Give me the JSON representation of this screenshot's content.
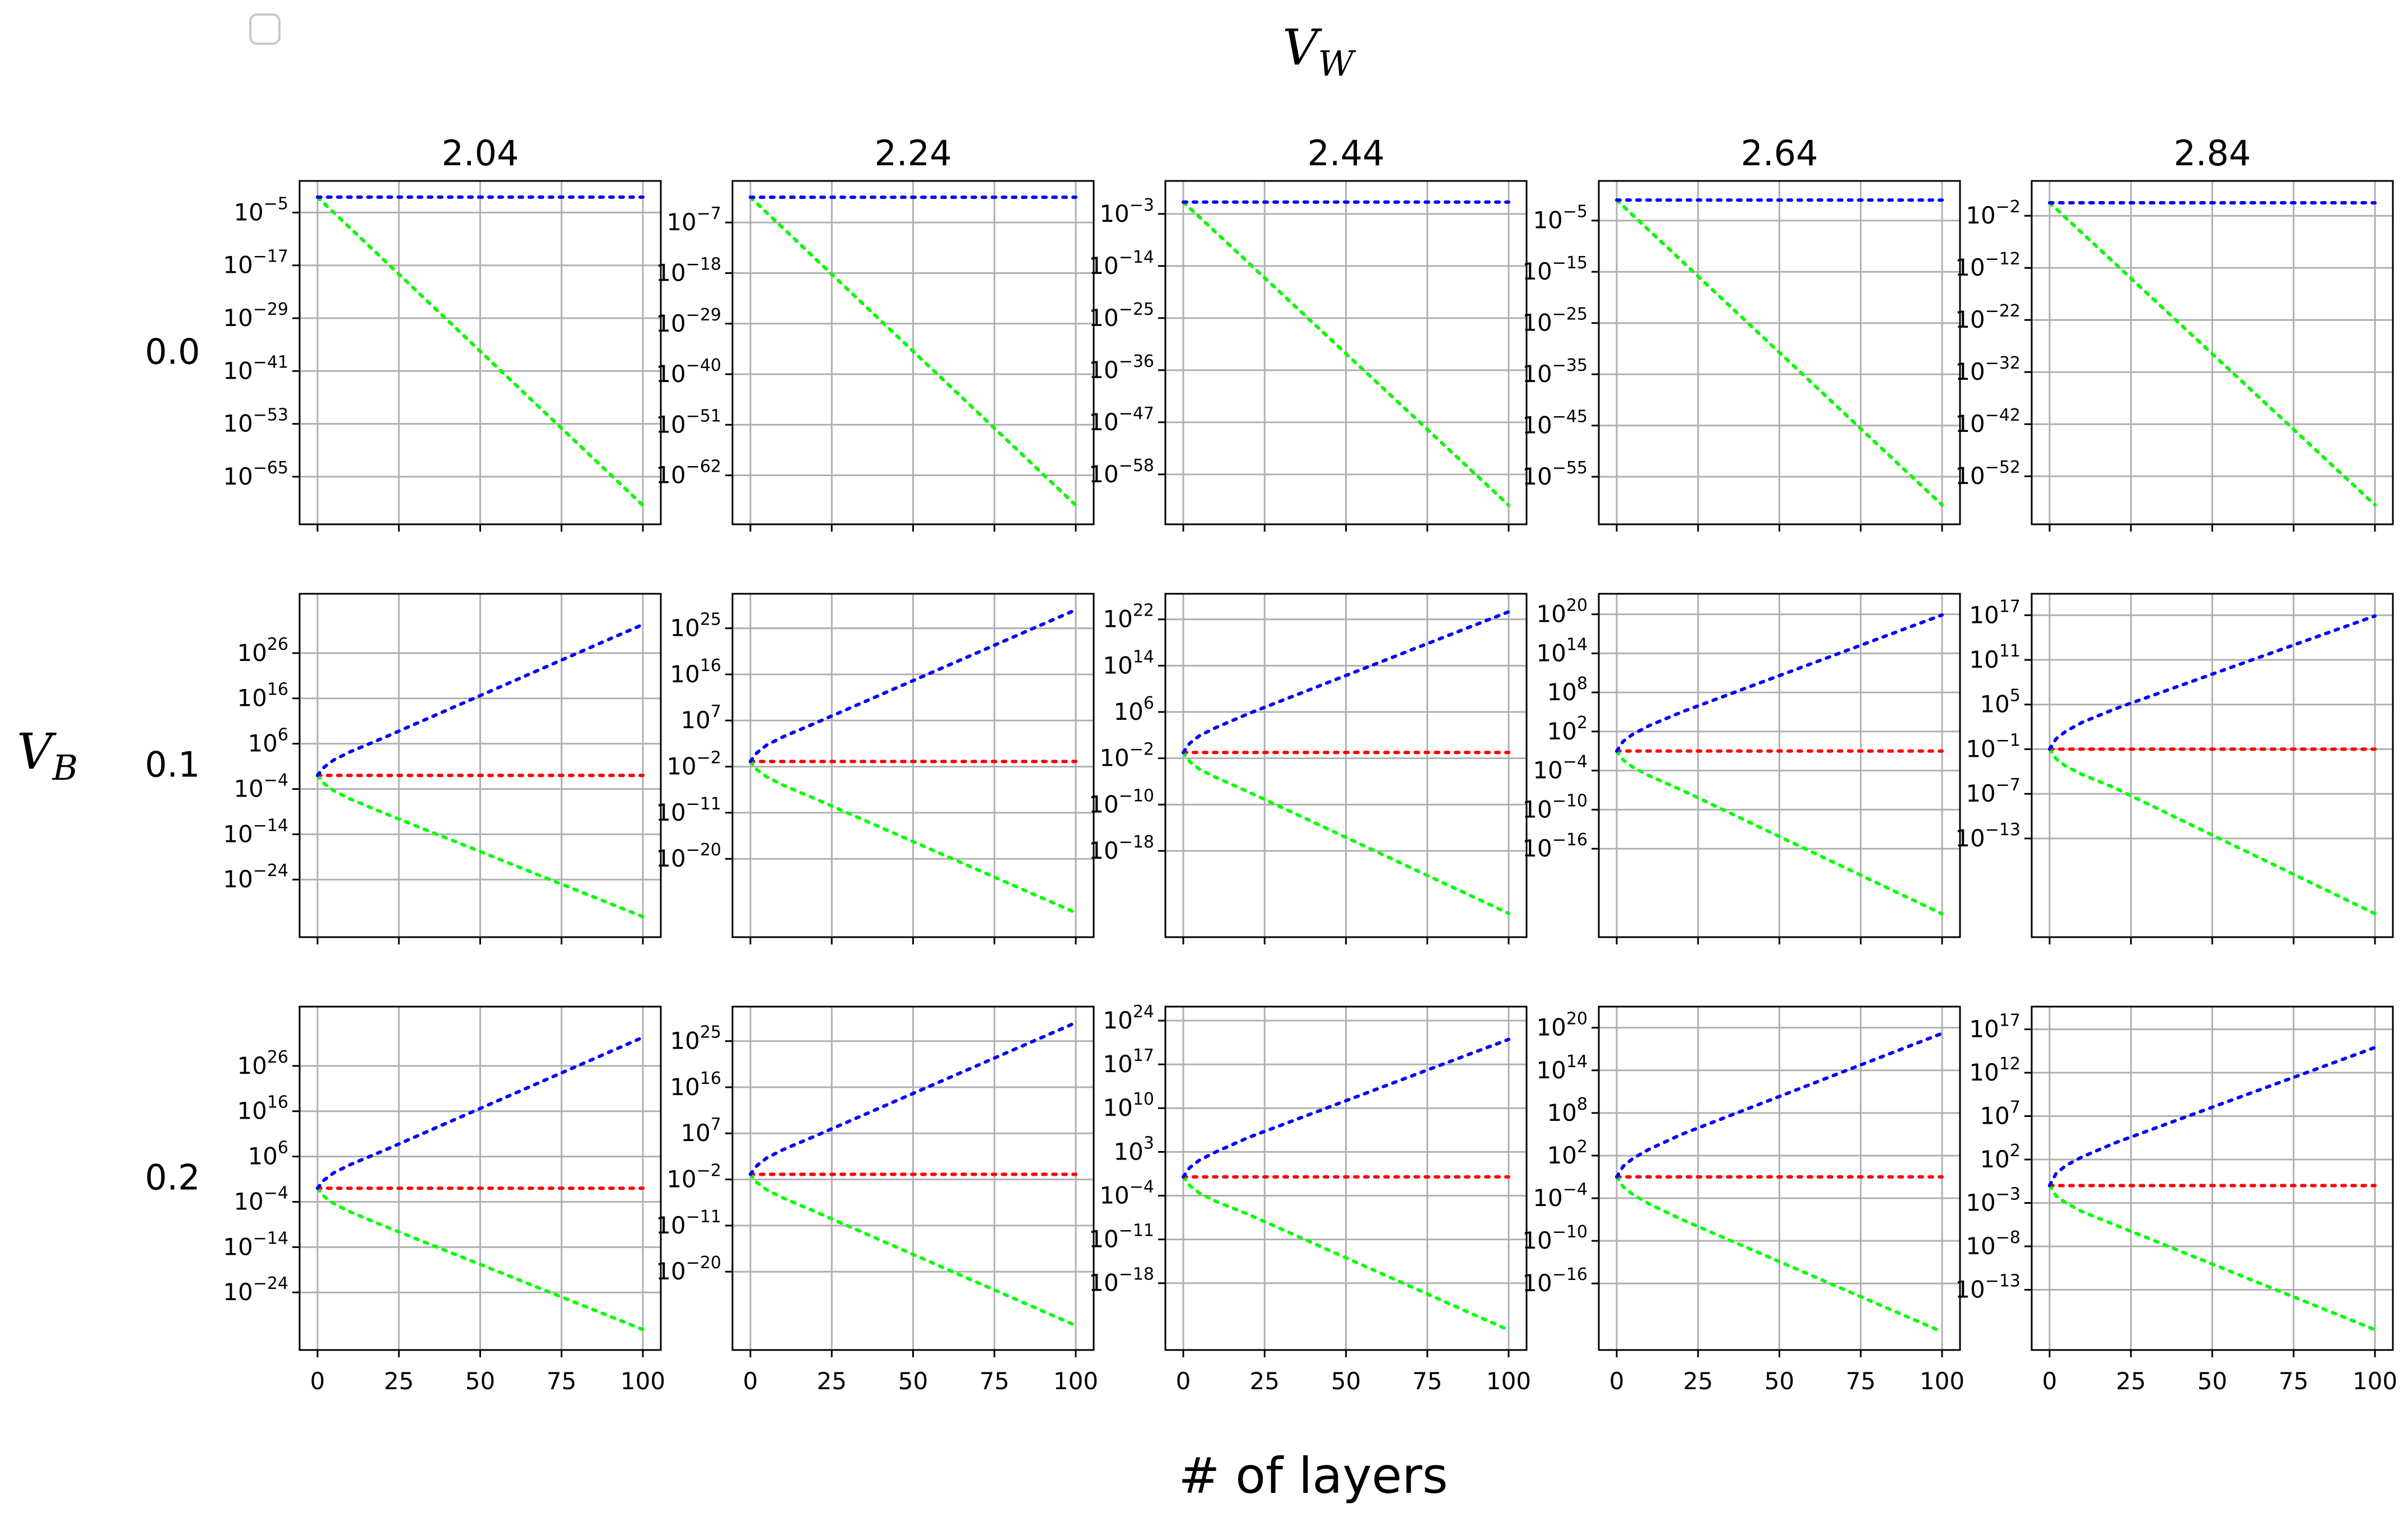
{
  "figure": {
    "title": "V",
    "title_sub": "W",
    "row_axis_label": "V",
    "row_axis_label_sub": "B",
    "xlabel": "# of layers",
    "col_labels": [
      "2.04",
      "2.24",
      "2.44",
      "2.64",
      "2.84"
    ],
    "row_labels": [
      "0.0",
      "0.1",
      "0.2"
    ],
    "x_ticks": [
      "0",
      "25",
      "50",
      "75",
      "100"
    ]
  },
  "colors": {
    "blue": "#0000ff",
    "red": "#ff0000",
    "green": "#00ff00",
    "grid": "#b0b0b0"
  },
  "chart_data": [
    {
      "type": "line",
      "row": "0.0",
      "col": "2.04",
      "x": [
        0,
        100
      ],
      "yscale": "log",
      "ylim_exp": [
        -72,
        -1
      ],
      "yticks_exp": [
        -5,
        -17,
        -29,
        -41,
        -53,
        -65
      ],
      "series": [
        {
          "color": "blue",
          "x": [
            0,
            100
          ],
          "y_exp": [
            -1.5,
            -1.5
          ]
        },
        {
          "color": "red",
          "x": [
            0,
            100
          ],
          "y_exp": [
            -1.5,
            -71.5
          ]
        },
        {
          "color": "green",
          "x": [
            0,
            100
          ],
          "y_exp": [
            -1.5,
            -71.5
          ]
        }
      ]
    },
    {
      "type": "line",
      "row": "0.0",
      "col": "2.24",
      "x": [
        0,
        100
      ],
      "yscale": "log",
      "ylim_exp": [
        -69,
        -1
      ],
      "yticks_exp": [
        -7,
        -18,
        -29,
        -40,
        -51,
        -62
      ],
      "series": [
        {
          "color": "blue",
          "x": [
            0,
            100
          ],
          "y_exp": [
            -1.5,
            -1.5
          ]
        },
        {
          "color": "red",
          "x": [
            0,
            100
          ],
          "y_exp": [
            -1.5,
            -68.5
          ]
        },
        {
          "color": "green",
          "x": [
            0,
            100
          ],
          "y_exp": [
            -1.5,
            -68.5
          ]
        }
      ]
    },
    {
      "type": "line",
      "row": "0.0",
      "col": "2.44",
      "x": [
        0,
        100
      ],
      "yscale": "log",
      "ylim_exp": [
        -65,
        1
      ],
      "yticks_exp": [
        -3,
        -14,
        -25,
        -36,
        -47,
        -58
      ],
      "series": [
        {
          "color": "blue",
          "x": [
            0,
            100
          ],
          "y_exp": [
            -0.5,
            -0.5
          ]
        },
        {
          "color": "red",
          "x": [
            0,
            100
          ],
          "y_exp": [
            -0.5,
            -64.5
          ]
        },
        {
          "color": "green",
          "x": [
            0,
            100
          ],
          "y_exp": [
            -0.5,
            -64.5
          ]
        }
      ]
    },
    {
      "type": "line",
      "row": "0.0",
      "col": "2.64",
      "x": [
        0,
        100
      ],
      "yscale": "log",
      "ylim_exp": [
        -61,
        0
      ],
      "yticks_exp": [
        -5,
        -15,
        -25,
        -35,
        -45,
        -55
      ],
      "series": [
        {
          "color": "blue",
          "x": [
            0,
            100
          ],
          "y_exp": [
            -1,
            -1
          ]
        },
        {
          "color": "red",
          "x": [
            0,
            100
          ],
          "y_exp": [
            -1,
            -60.5
          ]
        },
        {
          "color": "green",
          "x": [
            0,
            100
          ],
          "y_exp": [
            -1,
            -60.5
          ]
        }
      ]
    },
    {
      "type": "line",
      "row": "0.0",
      "col": "2.84",
      "x": [
        0,
        100
      ],
      "yscale": "log",
      "ylim_exp": [
        -58,
        2
      ],
      "yticks_exp": [
        -2,
        -12,
        -22,
        -32,
        -42,
        -52
      ],
      "series": [
        {
          "color": "blue",
          "x": [
            0,
            100
          ],
          "y_exp": [
            0.5,
            0.5
          ]
        },
        {
          "color": "red",
          "x": [
            0,
            100
          ],
          "y_exp": [
            0.5,
            -57.5
          ]
        },
        {
          "color": "green",
          "x": [
            0,
            100
          ],
          "y_exp": [
            0.5,
            -57.5
          ]
        }
      ]
    },
    {
      "type": "line",
      "row": "0.1",
      "col": "2.04",
      "x": [
        0,
        100
      ],
      "yscale": "log",
      "ylim_exp": [
        -33,
        36
      ],
      "yticks_exp": [
        26,
        16,
        6,
        -4,
        -14,
        -24
      ],
      "series": [
        {
          "color": "blue",
          "x": [
            0,
            2,
            5,
            10,
            20,
            100
          ],
          "y_exp": [
            -1,
            0.8,
            2.4,
            4.2,
            7.2,
            32.3
          ]
        },
        {
          "color": "red",
          "x": [
            0,
            100
          ],
          "y_exp": [
            -1,
            -1
          ]
        },
        {
          "color": "green",
          "x": [
            0,
            2,
            5,
            10,
            20,
            100
          ],
          "y_exp": [
            -1,
            -2.8,
            -4.4,
            -6.2,
            -9.2,
            -32.2
          ]
        }
      ]
    },
    {
      "type": "line",
      "row": "0.1",
      "col": "2.24",
      "x": [
        0,
        100
      ],
      "yscale": "log",
      "ylim_exp": [
        -32,
        29
      ],
      "yticks_exp": [
        25,
        16,
        7,
        -2,
        -11,
        -20
      ],
      "series": [
        {
          "color": "blue",
          "x": [
            0,
            2,
            5,
            10,
            20,
            100
          ],
          "y_exp": [
            -1,
            0.7,
            2.2,
            3.8,
            6.5,
            28.6
          ]
        },
        {
          "color": "red",
          "x": [
            0,
            100
          ],
          "y_exp": [
            -1,
            -1
          ]
        },
        {
          "color": "green",
          "x": [
            0,
            2,
            5,
            10,
            20,
            100
          ],
          "y_exp": [
            -1,
            -2.6,
            -4.0,
            -5.6,
            -8.3,
            -30.5
          ]
        }
      ]
    },
    {
      "type": "line",
      "row": "0.1",
      "col": "2.44",
      "x": [
        0,
        100
      ],
      "yscale": "log",
      "ylim_exp": [
        -30,
        24
      ],
      "yticks_exp": [
        22,
        14,
        6,
        -2,
        -10,
        -18
      ],
      "series": [
        {
          "color": "blue",
          "x": [
            0,
            2,
            5,
            10,
            20,
            100
          ],
          "y_exp": [
            -1,
            0.6,
            1.9,
            3.3,
            5.7,
            23.3
          ]
        },
        {
          "color": "red",
          "x": [
            0,
            100
          ],
          "y_exp": [
            -1,
            -1
          ]
        },
        {
          "color": "green",
          "x": [
            0,
            2,
            5,
            10,
            20,
            100
          ],
          "y_exp": [
            -1,
            -2.6,
            -3.9,
            -5.3,
            -7.8,
            -28.8
          ]
        }
      ]
    },
    {
      "type": "line",
      "row": "0.1",
      "col": "2.64",
      "x": [
        0,
        100
      ],
      "yscale": "log",
      "ylim_exp": [
        -27,
        21
      ],
      "yticks_exp": [
        20,
        14,
        8,
        2,
        -4,
        -10,
        -16
      ],
      "series": [
        {
          "color": "blue",
          "x": [
            0,
            2,
            5,
            10,
            20,
            100
          ],
          "y_exp": [
            -1,
            0.5,
            1.6,
            2.9,
            5.0,
            19.9
          ]
        },
        {
          "color": "red",
          "x": [
            0,
            100
          ],
          "y_exp": [
            -1,
            -1
          ]
        },
        {
          "color": "green",
          "x": [
            0,
            2,
            5,
            10,
            20,
            100
          ],
          "y_exp": [
            -1,
            -2.4,
            -3.5,
            -4.8,
            -7.0,
            -26.0
          ]
        }
      ]
    },
    {
      "type": "line",
      "row": "0.1",
      "col": "2.84",
      "x": [
        0,
        100
      ],
      "yscale": "log",
      "ylim_exp": [
        -24,
        18
      ],
      "yticks_exp": [
        17,
        11,
        5,
        -1,
        -7,
        -13
      ],
      "series": [
        {
          "color": "blue",
          "x": [
            0,
            2,
            5,
            10,
            20,
            100
          ],
          "y_exp": [
            -1,
            0.4,
            1.4,
            2.6,
            4.4,
            16.9
          ]
        },
        {
          "color": "red",
          "x": [
            0,
            100
          ],
          "y_exp": [
            -1,
            -1
          ]
        },
        {
          "color": "green",
          "x": [
            0,
            2,
            5,
            10,
            20,
            100
          ],
          "y_exp": [
            -1,
            -2.3,
            -3.3,
            -4.4,
            -6.2,
            -23.1
          ]
        }
      ]
    },
    {
      "type": "line",
      "row": "0.2",
      "col": "2.04",
      "x": [
        0,
        100
      ],
      "yscale": "log",
      "ylim_exp": [
        -33,
        36
      ],
      "yticks_exp": [
        26,
        16,
        6,
        -4,
        -14,
        -24
      ],
      "series": [
        {
          "color": "blue",
          "x": [
            0,
            2,
            5,
            10,
            20,
            100
          ],
          "y_exp": [
            -1,
            0.8,
            2.4,
            4.2,
            7.2,
            32.3
          ]
        },
        {
          "color": "red",
          "x": [
            0,
            100
          ],
          "y_exp": [
            -1,
            -1
          ]
        },
        {
          "color": "green",
          "x": [
            0,
            2,
            5,
            10,
            20,
            100
          ],
          "y_exp": [
            -1,
            -2.8,
            -4.4,
            -6.2,
            -9.2,
            -32.2
          ]
        }
      ]
    },
    {
      "type": "line",
      "row": "0.2",
      "col": "2.24",
      "x": [
        0,
        100
      ],
      "yscale": "log",
      "ylim_exp": [
        -32,
        29
      ],
      "yticks_exp": [
        25,
        16,
        7,
        -2,
        -11,
        -20
      ],
      "series": [
        {
          "color": "blue",
          "x": [
            0,
            2,
            5,
            10,
            20,
            100
          ],
          "y_exp": [
            -1,
            0.7,
            2.2,
            3.8,
            6.5,
            28.6
          ]
        },
        {
          "color": "red",
          "x": [
            0,
            100
          ],
          "y_exp": [
            -1,
            -1
          ]
        },
        {
          "color": "green",
          "x": [
            0,
            2,
            5,
            10,
            20,
            100
          ],
          "y_exp": [
            -1,
            -2.6,
            -4.0,
            -5.6,
            -8.3,
            -30.5
          ]
        }
      ]
    },
    {
      "type": "line",
      "row": "0.2",
      "col": "2.44",
      "x": [
        0,
        100
      ],
      "yscale": "log",
      "ylim_exp": [
        -26,
        24
      ],
      "yticks_exp": [
        24,
        17,
        10,
        3,
        -4,
        -11,
        -18
      ],
      "series": [
        {
          "color": "blue",
          "x": [
            0,
            2,
            5,
            10,
            20,
            100
          ],
          "y_exp": [
            -1,
            0.5,
            1.7,
            3.0,
            5.3,
            21.0
          ]
        },
        {
          "color": "red",
          "x": [
            0,
            100
          ],
          "y_exp": [
            -1,
            -1
          ]
        },
        {
          "color": "green",
          "x": [
            0,
            2,
            5,
            10,
            20,
            100
          ],
          "y_exp": [
            -1,
            -2.4,
            -3.6,
            -4.9,
            -7.0,
            -25.5
          ]
        }
      ]
    },
    {
      "type": "line",
      "row": "0.2",
      "col": "2.64",
      "x": [
        0,
        100
      ],
      "yscale": "log",
      "ylim_exp": [
        -23,
        21
      ],
      "yticks_exp": [
        20,
        14,
        8,
        2,
        -4,
        -10,
        -16
      ],
      "series": [
        {
          "color": "blue",
          "x": [
            0,
            2,
            5,
            10,
            20,
            100
          ],
          "y_exp": [
            -1,
            0.5,
            1.6,
            2.9,
            5.0,
            19.2
          ]
        },
        {
          "color": "red",
          "x": [
            0,
            100
          ],
          "y_exp": [
            -1,
            -1
          ]
        },
        {
          "color": "green",
          "x": [
            0,
            2,
            5,
            10,
            20,
            100
          ],
          "y_exp": [
            -1,
            -2.4,
            -3.5,
            -4.8,
            -7.0,
            -22.8
          ]
        }
      ]
    },
    {
      "type": "line",
      "row": "0.2",
      "col": "2.84",
      "x": [
        0,
        100
      ],
      "yscale": "log",
      "ylim_exp": [
        -18,
        18
      ],
      "yticks_exp": [
        17,
        12,
        7,
        2,
        -3,
        -8,
        -13
      ],
      "series": [
        {
          "color": "blue",
          "x": [
            0,
            2,
            5,
            10,
            20,
            100
          ],
          "y_exp": [
            -1,
            0.4,
            1.3,
            2.3,
            3.9,
            14.9
          ]
        },
        {
          "color": "red",
          "x": [
            0,
            100
          ],
          "y_exp": [
            -1,
            -1
          ]
        },
        {
          "color": "green",
          "x": [
            0,
            2,
            5,
            10,
            20,
            100
          ],
          "y_exp": [
            -1,
            -2.2,
            -3.0,
            -4.0,
            -5.5,
            -17.6
          ]
        }
      ]
    }
  ]
}
